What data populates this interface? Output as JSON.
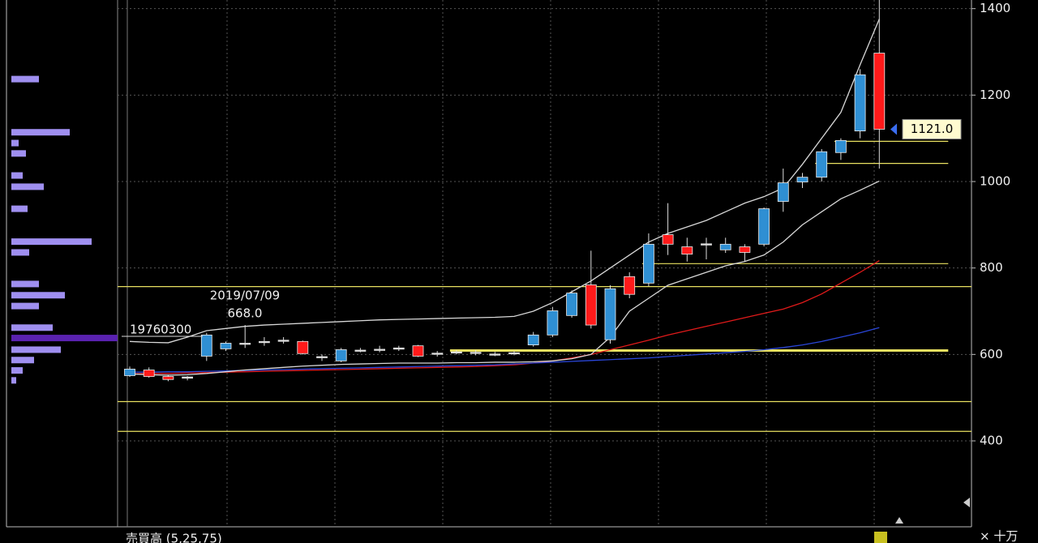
{
  "chart_data": {
    "type": "candlestick",
    "open": [
      551,
      564,
      549,
      545,
      596,
      613,
      624,
      628,
      632,
      630,
      594,
      585,
      609,
      611,
      614,
      620,
      602,
      605,
      604,
      600,
      603,
      622,
      645,
      690,
      761,
      634,
      780,
      765,
      877,
      849,
      853,
      842,
      849,
      855,
      954,
      999,
      1010,
      1067,
      1117,
      1297
    ],
    "high": [
      572,
      570,
      553,
      550,
      650,
      630,
      668,
      640,
      640,
      632,
      600,
      615,
      615,
      620,
      620,
      622,
      608,
      610,
      610,
      606,
      608,
      652,
      710,
      748,
      840,
      760,
      790,
      880,
      950,
      870,
      870,
      870,
      855,
      940,
      1030,
      1020,
      1075,
      1100,
      1260,
      1420
    ],
    "low": [
      548,
      546,
      538,
      540,
      585,
      608,
      615,
      620,
      625,
      600,
      585,
      582,
      605,
      605,
      608,
      594,
      595,
      600,
      598,
      596,
      598,
      618,
      640,
      685,
      660,
      625,
      730,
      758,
      830,
      815,
      820,
      835,
      815,
      850,
      930,
      985,
      1000,
      1050,
      1100,
      1030
    ],
    "close": [
      566,
      549,
      542,
      548,
      645,
      626,
      626,
      630,
      633,
      602,
      595,
      611,
      610,
      612,
      615,
      596,
      603,
      606,
      605,
      601,
      604,
      645,
      701,
      742,
      668,
      752,
      739,
      855,
      855,
      832,
      856,
      855,
      836,
      937,
      997,
      1010,
      1069,
      1095,
      1247,
      1121
    ],
    "up_color": "#2f8fd3",
    "down_color": "#ff1a1a",
    "series": [
      {
        "color": "#e01a1a",
        "values": [
          555,
          556,
          556,
          557,
          558,
          559,
          560,
          561,
          562,
          563,
          564,
          565,
          566,
          567,
          568,
          569,
          570,
          571,
          572,
          574,
          576,
          580,
          585,
          592,
          600,
          611,
          622,
          633,
          645,
          655,
          665,
          675,
          685,
          695,
          705,
          720,
          740,
          765,
          790,
          817
        ]
      },
      {
        "color": "#2a46d8",
        "values": [
          559,
          559,
          560,
          560,
          561,
          562,
          563,
          564,
          565,
          566,
          567,
          568,
          569,
          570,
          571,
          572,
          573,
          574,
          575,
          576,
          578,
          580,
          582,
          584,
          586,
          588,
          590,
          592,
          595,
          598,
          601,
          604,
          607,
          611,
          616,
          622,
          630,
          640,
          650,
          662
        ]
      },
      {
        "color": "#d8d8d8",
        "values": [
          630,
          628,
          627,
          640,
          655,
          660,
          665,
          668,
          670,
          672,
          674,
          676,
          678,
          680,
          681,
          682,
          683,
          684,
          685,
          686,
          688,
          700,
          720,
          745,
          770,
          800,
          830,
          860,
          880,
          895,
          910,
          930,
          950,
          965,
          985,
          1040,
          1100,
          1160,
          1270,
          1376
        ]
      },
      {
        "color": "#d8d8d8",
        "values": [
          555,
          553,
          552,
          553,
          556,
          560,
          564,
          567,
          570,
          573,
          575,
          577,
          578,
          579,
          580,
          580,
          580,
          581,
          581,
          582,
          582,
          583,
          585,
          590,
          600,
          640,
          700,
          730,
          760,
          775,
          790,
          805,
          815,
          830,
          860,
          900,
          930,
          960,
          980,
          1001
        ]
      }
    ],
    "hlines": [
      {
        "value": 1042,
        "from": 36
      },
      {
        "value": 1093,
        "from": 37
      },
      {
        "value": 810,
        "from": 27
      },
      {
        "value": 757,
        "from": 0
      },
      {
        "value": 609,
        "from": 17
      },
      {
        "value": 491,
        "from": 0
      },
      {
        "value": 422,
        "from": 0
      }
    ],
    "hline_color": "#e8e060",
    "ylim": [
      220,
      1420
    ],
    "yticks": [
      400,
      600,
      800,
      1000,
      1200,
      1400
    ],
    "grid": true,
    "volume_profile": {
      "prices": [
        1237,
        1114,
        1089,
        1065,
        1014,
        988,
        937,
        861,
        836,
        763,
        737,
        712,
        662,
        638,
        611,
        587,
        563,
        540
      ],
      "values": [
        34,
        72,
        9,
        18,
        14,
        40,
        20,
        99,
        22,
        34,
        66,
        34,
        51,
        131,
        61,
        28,
        14,
        6
      ],
      "color": "#9f8ff0",
      "highlight_price": 638,
      "highlight_color": "#5a22b0"
    },
    "annotations": {
      "volume_label": "19760300",
      "date_label": "2019/07/09",
      "high_label": "668.0",
      "last_price_label": "1121.0"
    },
    "volume_panel_title": "売買高 (5,25,75)",
    "volume_unit": "× 十万"
  }
}
